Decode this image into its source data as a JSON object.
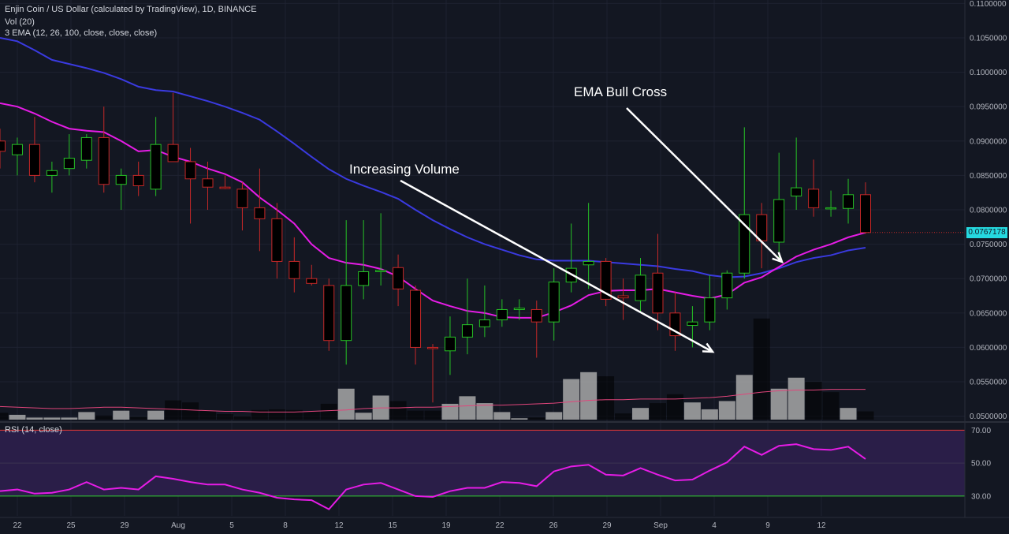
{
  "header": {
    "symbol_line": "Enjin Coin / US Dollar (calculated by TradingView), 1D, BINANCE",
    "volume_line": "Vol (20)",
    "ema_line": "3 EMA (12, 26, 100, close, close, close)",
    "rsi_line": "RSI (14, close)"
  },
  "annotations": {
    "volume_note": "Increasing Volume",
    "ema_note": "EMA Bull Cross"
  },
  "current_price": "0.0767178",
  "colors": {
    "background": "#131722",
    "up": "#26c126",
    "down": "#c62828",
    "ema_fast": "#e61ce6",
    "ema_slow": "#3a3ae0",
    "rsi": "#e61ce6",
    "rsi_band": "#2a1e48",
    "price_tag": "#25d9e0",
    "volume_bar": "#a8a8a8"
  },
  "chart_data": [
    {
      "type": "candlestick",
      "title": "Enjin Coin / US Dollar, 1D",
      "ylim": [
        0.0495,
        0.1105
      ],
      "y_ticks": [
        "0.1100000",
        "0.1050000",
        "0.1000000",
        "0.0950000",
        "0.0900000",
        "0.0850000",
        "0.0800000",
        "0.0750000",
        "0.0700000",
        "0.0650000",
        "0.0600000",
        "0.0550000",
        "0.0500000"
      ],
      "x_tick_labels": [
        "22",
        "25",
        "29",
        "Aug",
        "5",
        "8",
        "12",
        "15",
        "19",
        "22",
        "26",
        "29",
        "Sep",
        "4",
        "9",
        "12"
      ],
      "ohlc": [
        [
          0.09,
          0.0918,
          0.086,
          0.0885
        ],
        [
          0.088,
          0.0905,
          0.085,
          0.0895
        ],
        [
          0.0895,
          0.0935,
          0.084,
          0.085
        ],
        [
          0.085,
          0.087,
          0.0825,
          0.0857
        ],
        [
          0.086,
          0.091,
          0.085,
          0.0875
        ],
        [
          0.0872,
          0.091,
          0.086,
          0.0905
        ],
        [
          0.0905,
          0.095,
          0.0825,
          0.0837
        ],
        [
          0.0837,
          0.086,
          0.08,
          0.085
        ],
        [
          0.085,
          0.087,
          0.082,
          0.0835
        ],
        [
          0.083,
          0.0935,
          0.082,
          0.0895
        ],
        [
          0.0895,
          0.097,
          0.087,
          0.087
        ],
        [
          0.087,
          0.089,
          0.078,
          0.0845
        ],
        [
          0.0845,
          0.087,
          0.08,
          0.0833
        ],
        [
          0.0833,
          0.085,
          0.083,
          0.0831
        ],
        [
          0.083,
          0.084,
          0.077,
          0.0803
        ],
        [
          0.0803,
          0.086,
          0.074,
          0.0787
        ],
        [
          0.0787,
          0.081,
          0.07,
          0.0725
        ],
        [
          0.0725,
          0.076,
          0.068,
          0.07
        ],
        [
          0.07,
          0.072,
          0.069,
          0.0693
        ],
        [
          0.069,
          0.07,
          0.0595,
          0.061
        ],
        [
          0.061,
          0.0785,
          0.0575,
          0.069
        ],
        [
          0.069,
          0.0785,
          0.067,
          0.071
        ],
        [
          0.071,
          0.0795,
          0.069,
          0.0712
        ],
        [
          0.0716,
          0.0735,
          0.066,
          0.0685
        ],
        [
          0.0683,
          0.069,
          0.0575,
          0.06
        ],
        [
          0.06,
          0.0605,
          0.052,
          0.0599
        ],
        [
          0.0595,
          0.0645,
          0.056,
          0.0615
        ],
        [
          0.0615,
          0.07,
          0.059,
          0.0633
        ],
        [
          0.063,
          0.069,
          0.0615,
          0.064
        ],
        [
          0.064,
          0.067,
          0.063,
          0.0655
        ],
        [
          0.0655,
          0.067,
          0.064,
          0.0657
        ],
        [
          0.0655,
          0.0668,
          0.0585,
          0.0637
        ],
        [
          0.0637,
          0.0715,
          0.061,
          0.0695
        ],
        [
          0.0695,
          0.078,
          0.068,
          0.0715
        ],
        [
          0.072,
          0.081,
          0.0685,
          0.0725
        ],
        [
          0.0725,
          0.073,
          0.066,
          0.067
        ],
        [
          0.0675,
          0.07,
          0.064,
          0.0672
        ],
        [
          0.0668,
          0.073,
          0.065,
          0.0705
        ],
        [
          0.0708,
          0.0765,
          0.0625,
          0.065
        ],
        [
          0.065,
          0.068,
          0.0595,
          0.0617
        ],
        [
          0.0632,
          0.066,
          0.06,
          0.0637
        ],
        [
          0.0637,
          0.0705,
          0.0625,
          0.0672
        ],
        [
          0.0672,
          0.0712,
          0.0655,
          0.0708
        ],
        [
          0.0708,
          0.092,
          0.07,
          0.0793
        ],
        [
          0.0793,
          0.081,
          0.0715,
          0.0755
        ],
        [
          0.0753,
          0.0883,
          0.073,
          0.0815
        ],
        [
          0.082,
          0.0905,
          0.08,
          0.0832
        ],
        [
          0.083,
          0.0873,
          0.079,
          0.0803
        ],
        [
          0.0803,
          0.0828,
          0.079,
          0.0803
        ],
        [
          0.0802,
          0.0845,
          0.078,
          0.0822
        ],
        [
          0.0822,
          0.084,
          0.0765,
          0.0767
        ]
      ],
      "volume": [
        0.0505,
        0.0502,
        0.0498,
        0.0498,
        0.0498,
        0.0506,
        0.0501,
        0.0508,
        0.0499,
        0.0508,
        0.0523,
        0.052,
        0.0508,
        0.0503,
        0.05,
        0.0509,
        0.051,
        0.0509,
        0.0507,
        0.0518,
        0.054,
        0.0505,
        0.053,
        0.0522,
        0.0508,
        0.0508,
        0.0518,
        0.0529,
        0.0519,
        0.0506,
        0.0497,
        0.0498,
        0.0506,
        0.0554,
        0.0564,
        0.0558,
        0.0504,
        0.0512,
        0.0519,
        0.0532,
        0.052,
        0.051,
        0.0522,
        0.056,
        0.0642,
        0.054,
        0.0556,
        0.055,
        0.0535,
        0.0512,
        0.0507
      ],
      "volume_up": [
        false,
        true,
        true,
        true,
        true,
        true,
        false,
        true,
        false,
        true,
        false,
        false,
        false,
        false,
        false,
        false,
        false,
        false,
        false,
        false,
        true,
        true,
        true,
        false,
        false,
        false,
        true,
        true,
        true,
        true,
        true,
        false,
        true,
        true,
        true,
        false,
        false,
        true,
        false,
        false,
        true,
        true,
        true,
        true,
        false,
        true,
        true,
        false,
        false,
        true,
        false
      ],
      "volume_ma": [
        0.0514,
        0.0513,
        0.0512,
        0.0511,
        0.0511,
        0.0512,
        0.0513,
        0.0513,
        0.0512,
        0.0511,
        0.051,
        0.0509,
        0.0508,
        0.0507,
        0.0507,
        0.0506,
        0.0506,
        0.0506,
        0.0507,
        0.0508,
        0.0509,
        0.0511,
        0.0512,
        0.0512,
        0.0513,
        0.0513,
        0.0514,
        0.0515,
        0.0516,
        0.0516,
        0.0517,
        0.0518,
        0.0519,
        0.0521,
        0.0523,
        0.0524,
        0.0524,
        0.0525,
        0.0525,
        0.0525,
        0.0526,
        0.0527,
        0.0529,
        0.0532,
        0.0535,
        0.0537,
        0.0538,
        0.0538,
        0.0539,
        0.0539,
        0.0539
      ],
      "ema12": [
        0.0955,
        0.095,
        0.094,
        0.0928,
        0.0918,
        0.0915,
        0.0913,
        0.09,
        0.0885,
        0.0887,
        0.0877,
        0.087,
        0.086,
        0.0852,
        0.084,
        0.0818,
        0.08,
        0.078,
        0.075,
        0.073,
        0.0723,
        0.072,
        0.0714,
        0.0703,
        0.0685,
        0.0668,
        0.066,
        0.0653,
        0.065,
        0.0644,
        0.0643,
        0.0643,
        0.0651,
        0.0661,
        0.0676,
        0.0682,
        0.0683,
        0.0683,
        0.0685,
        0.068,
        0.0675,
        0.0671,
        0.0677,
        0.0694,
        0.0702,
        0.0717,
        0.0732,
        0.0742,
        0.075,
        0.076,
        0.0767
      ],
      "ema26": [
        0.105,
        0.1045,
        0.1032,
        0.1018,
        0.1012,
        0.1006,
        0.0999,
        0.099,
        0.0979,
        0.0974,
        0.0972,
        0.0965,
        0.0958,
        0.095,
        0.0941,
        0.0931,
        0.0914,
        0.0896,
        0.0877,
        0.0859,
        0.0845,
        0.0835,
        0.0826,
        0.0816,
        0.08,
        0.0785,
        0.0772,
        0.076,
        0.075,
        0.0742,
        0.0734,
        0.0728,
        0.0726,
        0.0726,
        0.0726,
        0.0724,
        0.0722,
        0.072,
        0.0718,
        0.0714,
        0.0711,
        0.0705,
        0.0702,
        0.0703,
        0.0708,
        0.0715,
        0.0724,
        0.073,
        0.0734,
        0.0741,
        0.0745
      ],
      "rsi_ylim": [
        18,
        74
      ],
      "rsi_ticks": [
        "70.00",
        "50.00",
        "30.00"
      ],
      "rsi_levels": [
        70,
        30
      ],
      "rsi": [
        33,
        34,
        31.5,
        32,
        34,
        38.5,
        34,
        35,
        34,
        42,
        40.5,
        38.5,
        37,
        37,
        34,
        32,
        29,
        28,
        27.5,
        22,
        34,
        37,
        38,
        34,
        30,
        29.5,
        33,
        35,
        35,
        38.5,
        38,
        36,
        45,
        48,
        49,
        43,
        42.5,
        47,
        43,
        39.5,
        40,
        45.5,
        50.5,
        60,
        55,
        60.5,
        61.5,
        58.5,
        58,
        60,
        52.5
      ]
    }
  ]
}
